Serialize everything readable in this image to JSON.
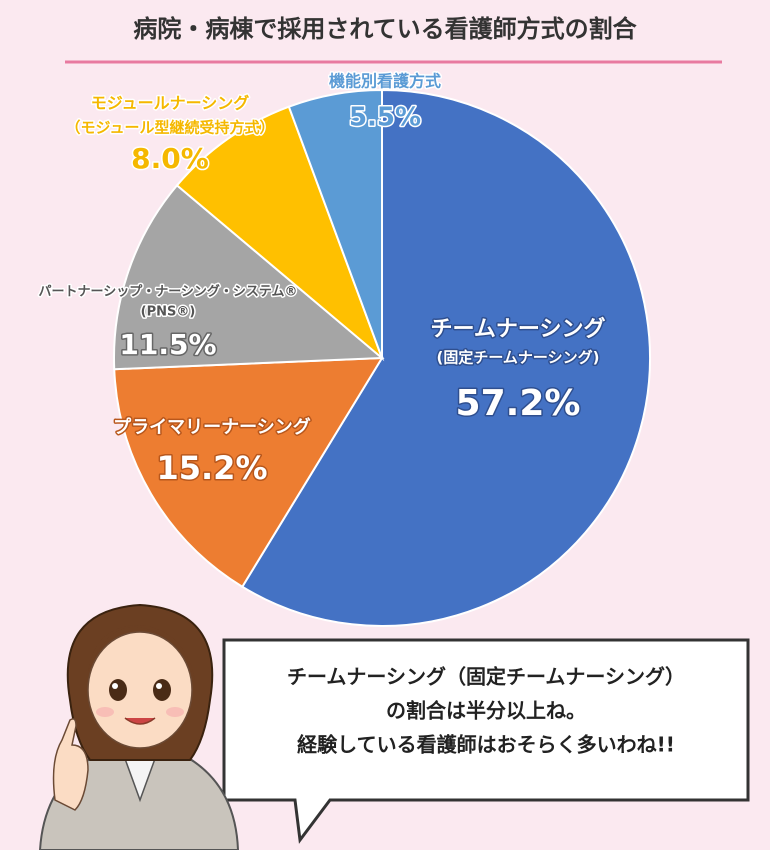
{
  "chart_data": {
    "type": "pie",
    "title": "病院・病棟で採用されている看護師方式の割合",
    "categories": [
      "チームナーシング",
      "プライマリーナーシング",
      "パートナーシップ・ナーシング・システム®",
      "モジュールナーシング",
      "機能別看護方式"
    ],
    "subcategories": [
      "(固定チームナーシング)",
      null,
      "(PNS®)",
      "（モジュール型継続受持方式）",
      null
    ],
    "values": [
      57.2,
      15.2,
      11.5,
      8.0,
      5.5
    ],
    "value_labels": [
      "57.2%",
      "15.2%",
      "11.5%",
      "8.0%",
      "5.5%"
    ],
    "colors": [
      "#4472c4",
      "#ed7d31",
      "#a5a5a5",
      "#ffc000",
      "#5b9bd5"
    ]
  },
  "speech": {
    "lines": [
      "チームナーシング（固定チームナーシング）",
      "の割合は半分以上ね。",
      "経験している看護師はおそらく多いわね!!"
    ]
  }
}
